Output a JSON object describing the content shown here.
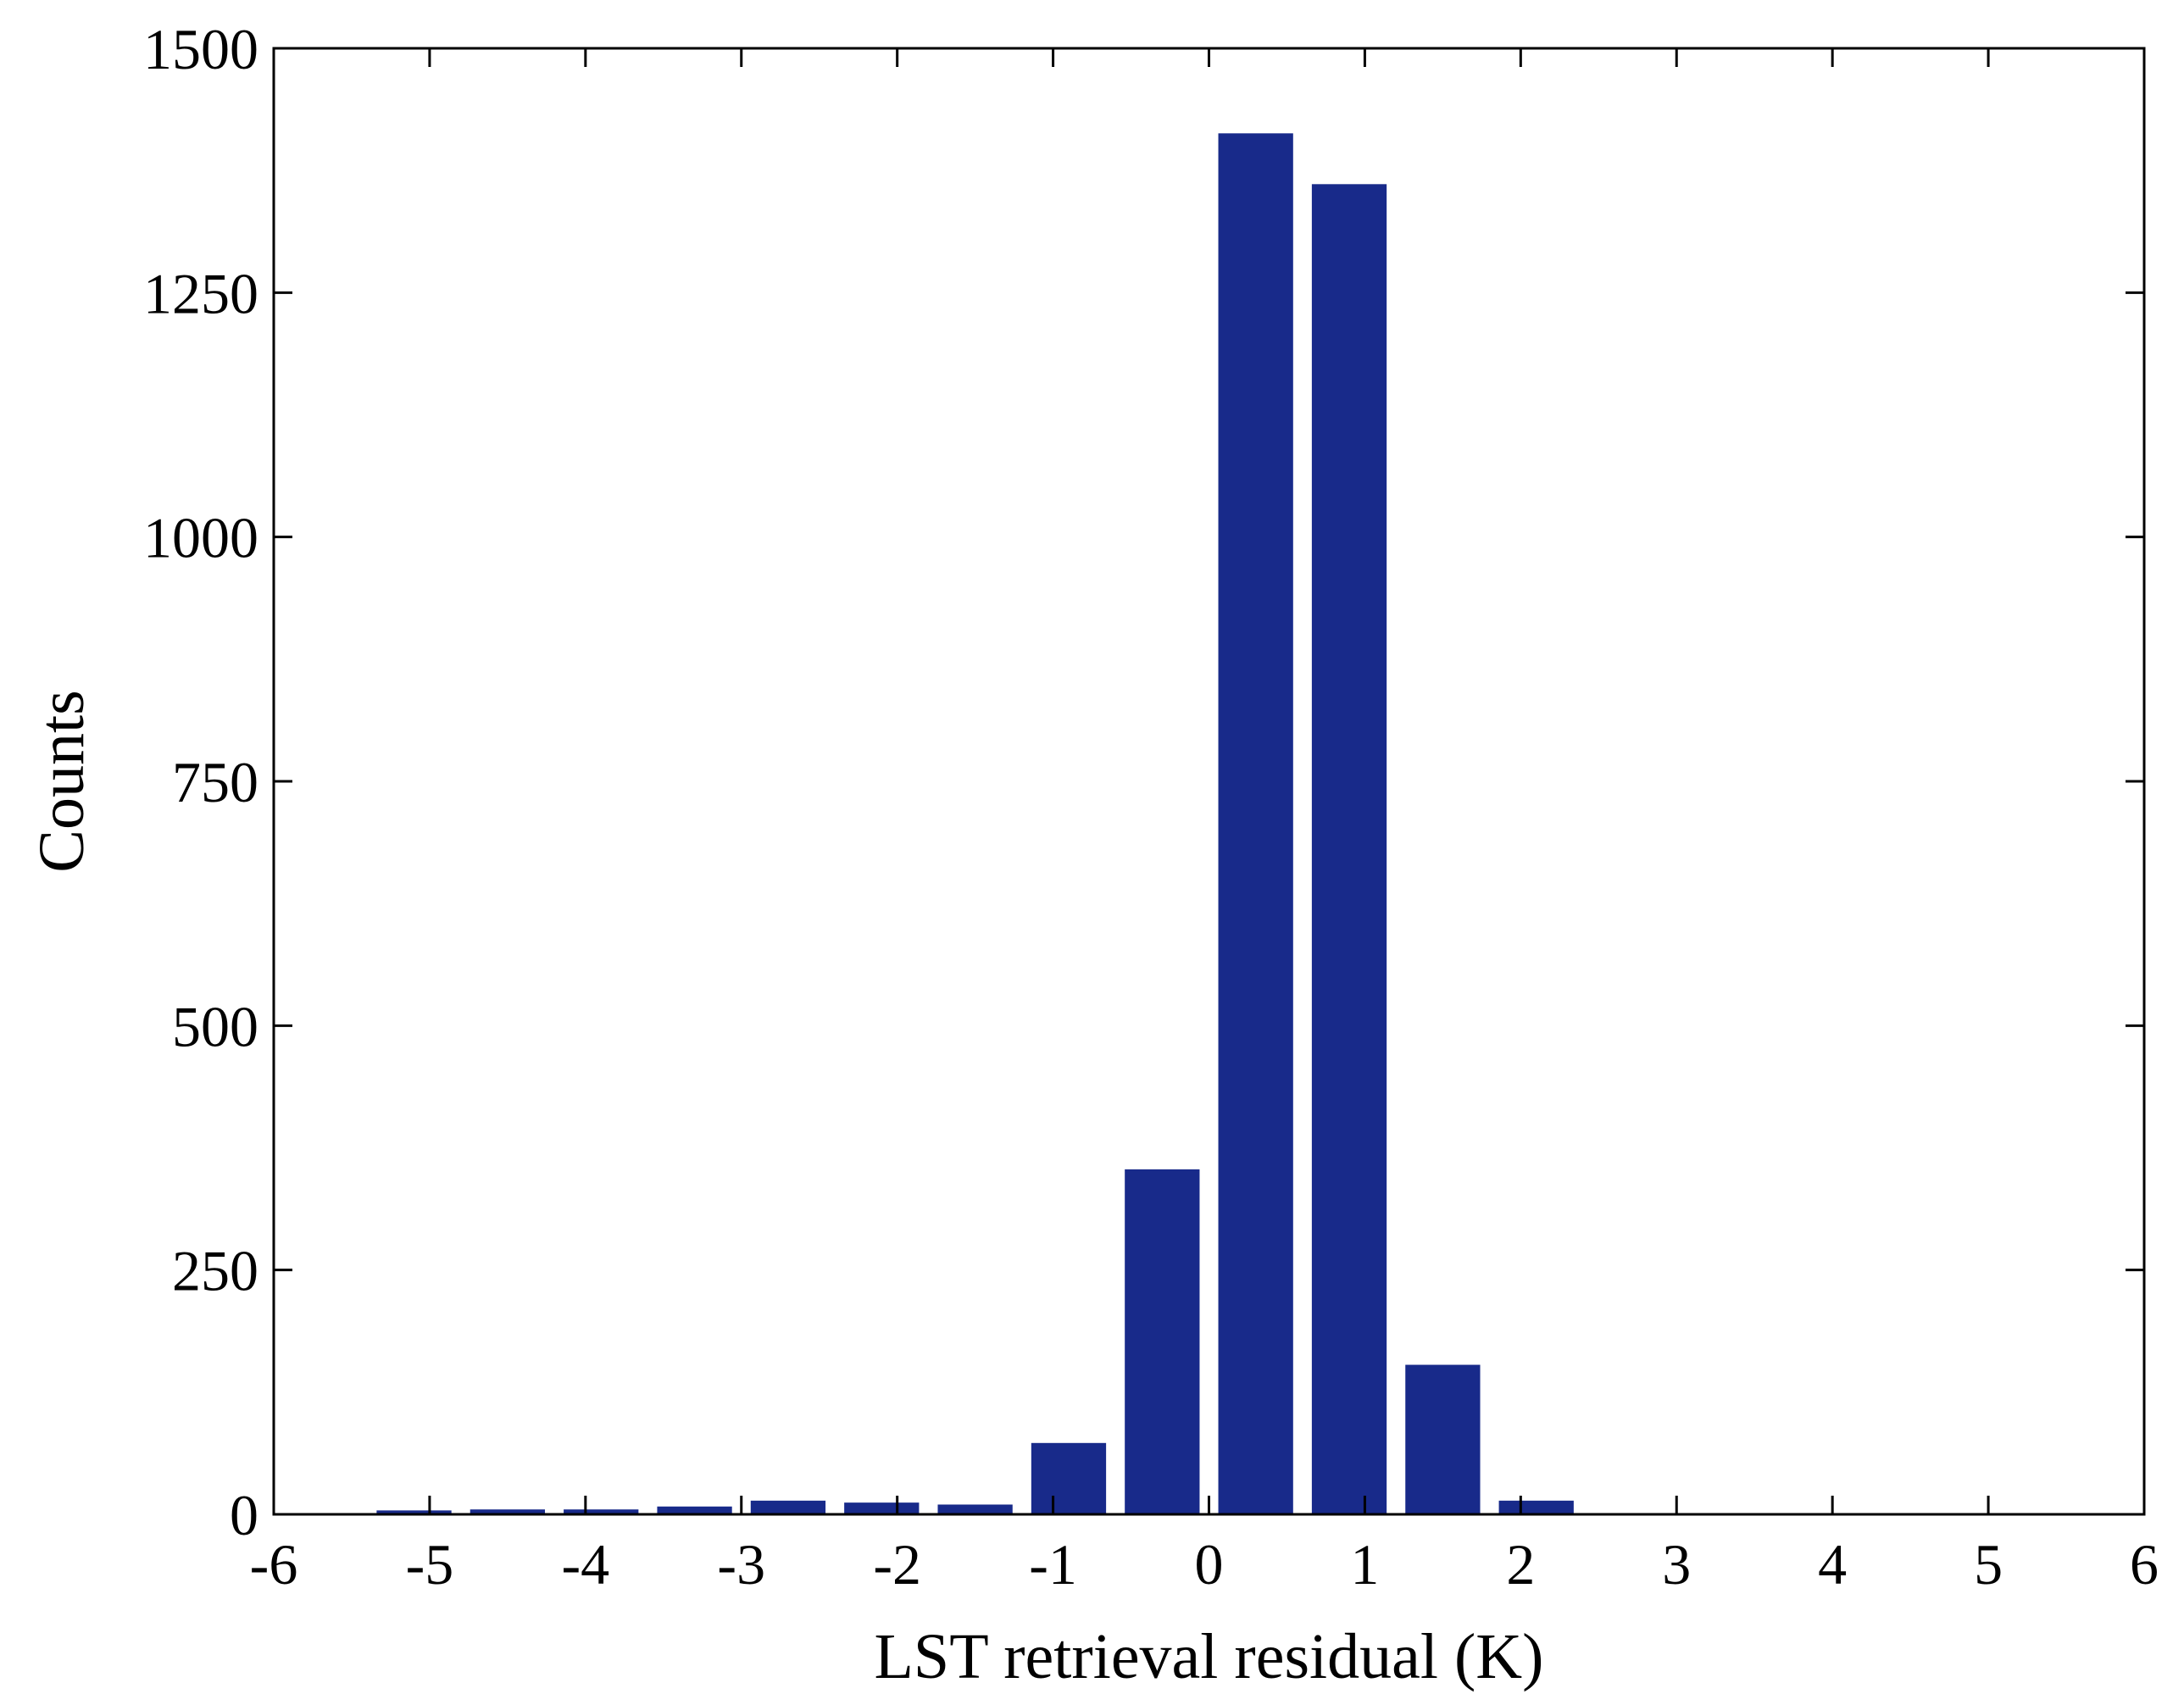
{
  "chart_data": {
    "type": "bar",
    "title": "",
    "xlabel": "LST retrieval residual (K)",
    "ylabel": "Counts",
    "xlim": [
      -6,
      6
    ],
    "ylim": [
      0,
      1500
    ],
    "xticks": [
      -6,
      -5,
      -4,
      -3,
      -2,
      -1,
      0,
      1,
      2,
      3,
      4,
      5,
      6
    ],
    "yticks": [
      0,
      250,
      500,
      750,
      1000,
      1250,
      1500
    ],
    "bar_width": 0.48,
    "x": [
      -5.1,
      -4.5,
      -3.9,
      -3.3,
      -2.7,
      -2.1,
      -1.5,
      -0.9,
      -0.3,
      0.3,
      0.9,
      1.5,
      2.1
    ],
    "values": [
      4,
      5,
      5,
      8,
      14,
      12,
      10,
      73,
      353,
      1413,
      1361,
      153,
      14
    ],
    "grid": false,
    "box": true,
    "color": "#182a8a"
  }
}
